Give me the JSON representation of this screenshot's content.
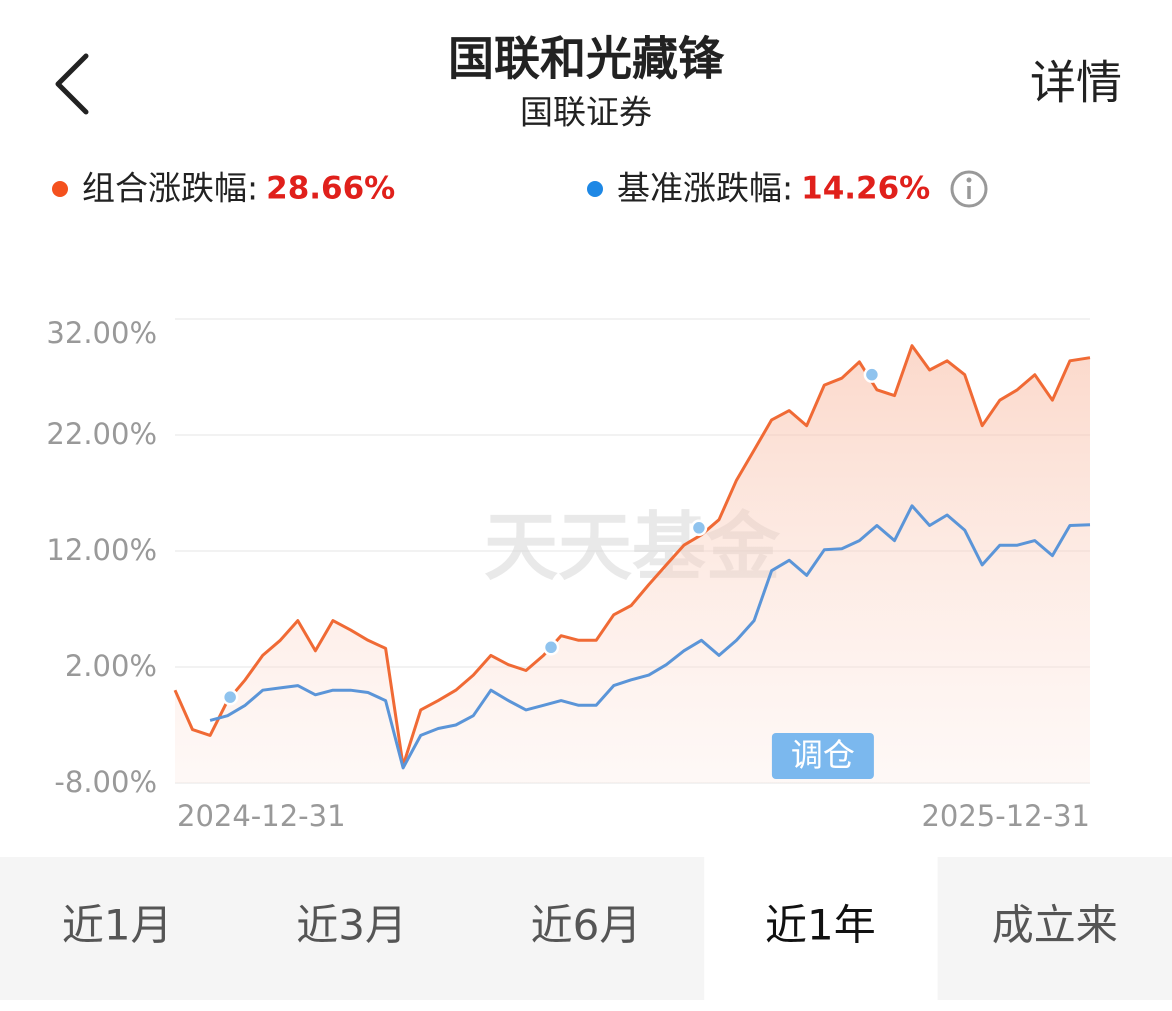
{
  "header": {
    "title": "国联和光藏锋",
    "subtitle": "国联证券",
    "detail": "详情"
  },
  "summary": [
    {
      "label": "组合涨跌幅:",
      "value": "28.66%",
      "color": "#f4511e"
    },
    {
      "label": "基准涨跌幅:",
      "value": "14.26%",
      "color": "#1e88e5"
    }
  ],
  "chart_data": {
    "type": "line",
    "x": [
      0,
      7,
      14,
      21,
      28,
      35,
      42,
      49,
      56,
      63,
      70,
      77,
      84,
      91,
      98,
      105,
      112,
      119,
      126,
      133,
      140,
      147,
      154,
      161,
      168,
      175,
      182,
      189,
      196,
      203,
      210,
      217,
      224,
      231,
      238,
      245,
      252,
      259,
      266,
      273,
      280,
      287,
      294,
      301,
      308,
      315,
      322,
      329,
      336,
      343,
      350,
      357,
      365
    ],
    "series": [
      {
        "name": "组合涨跌幅",
        "color": "#f06a35",
        "values": [
          0,
          -3.4,
          -3.9,
          -0.9,
          0.9,
          3.0,
          4.3,
          6.0,
          3.4,
          6.0,
          5.2,
          4.3,
          3.6,
          -6.5,
          -1.7,
          -0.9,
          0,
          1.3,
          3.0,
          2.2,
          1.7,
          3.0,
          4.7,
          4.3,
          4.3,
          6.5,
          7.3,
          9.1,
          10.8,
          12.5,
          13.4,
          14.7,
          18.1,
          20.7,
          23.3,
          24.1,
          22.8,
          26.3,
          26.9,
          28.3,
          25.9,
          25.4,
          29.7,
          27.6,
          28.4,
          27.2,
          22.8,
          25.0,
          25.9,
          27.2,
          25.0,
          28.4,
          28.66
        ]
      },
      {
        "name": "基准涨跌幅",
        "color": "#5b95d8",
        "values": [
          null,
          null,
          -2.6,
          -2.2,
          -1.3,
          0,
          0.2,
          0.4,
          -0.4,
          0,
          0,
          -0.2,
          -0.9,
          -6.7,
          -3.9,
          -3.3,
          -3.0,
          -2.2,
          0,
          -0.9,
          -1.7,
          -1.3,
          -0.9,
          -1.3,
          -1.3,
          0.4,
          0.9,
          1.3,
          2.2,
          3.4,
          4.3,
          3.0,
          4.3,
          6.0,
          10.3,
          11.2,
          9.9,
          12.1,
          12.2,
          12.9,
          14.2,
          12.9,
          15.9,
          14.2,
          15.1,
          13.8,
          10.8,
          12.5,
          12.5,
          12.9,
          11.6,
          14.2,
          14.26
        ]
      }
    ],
    "markers": {
      "x": [
        22,
        150,
        209,
        278
      ],
      "values": [
        -0.6,
        3.7,
        14.0,
        27.2
      ],
      "color": "#8fc3ee"
    },
    "annotation": {
      "text": "调仓",
      "x": 278
    },
    "watermark": "天天基金",
    "xlim": [
      0,
      365
    ],
    "xticks": [
      {
        "value": 0,
        "label": "2024-12-31"
      },
      {
        "value": 365,
        "label": "2025-12-31"
      }
    ],
    "ylim": [
      -8,
      32
    ],
    "yticks": [
      {
        "value": 32,
        "label": "32.00%"
      },
      {
        "value": 22,
        "label": "22.00%"
      },
      {
        "value": 12,
        "label": "12.00%"
      },
      {
        "value": 2,
        "label": "2.00%"
      },
      {
        "value": -8,
        "label": "-8.00%"
      }
    ],
    "grid": true
  },
  "tabs": {
    "items": [
      "近1月",
      "近3月",
      "近6月",
      "近1年",
      "成立来"
    ],
    "selected": 3
  }
}
